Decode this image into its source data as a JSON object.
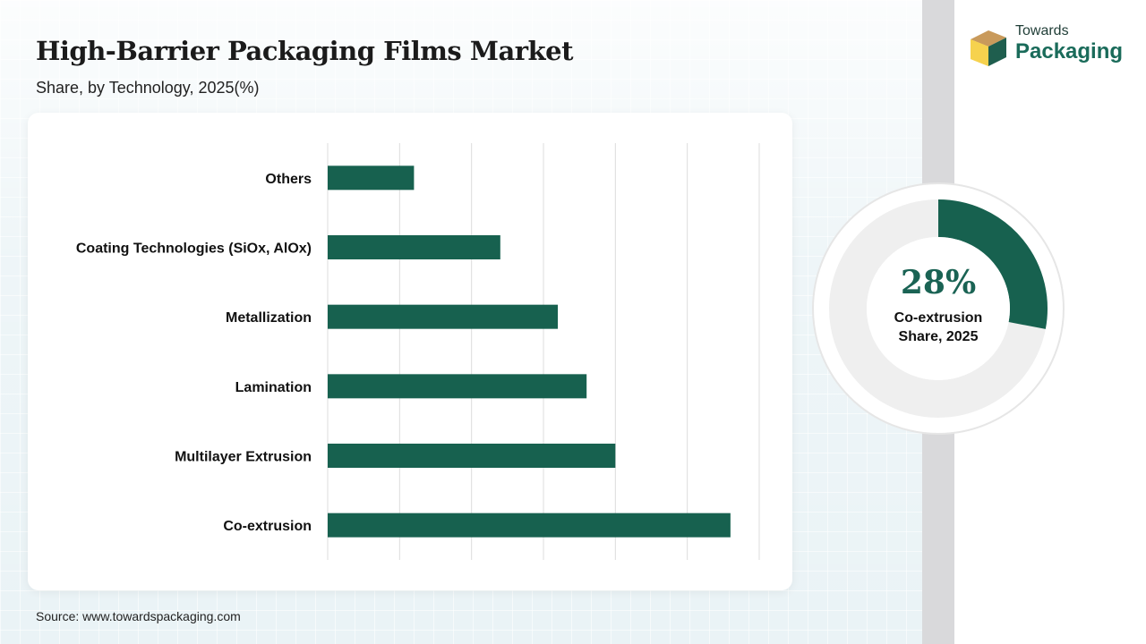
{
  "header": {
    "title": "High-Barrier Packaging Films Market",
    "subtitle": "Share, by Technology, 2025(%)"
  },
  "brand": {
    "line1": "Towards",
    "line2": "Packaging"
  },
  "footer": {
    "source": "Source: www.towardspackaging.com"
  },
  "colors": {
    "bar": "#17614f",
    "donut_fill": "#17614f",
    "donut_track": "#efefef",
    "grid": "#dcdcdc"
  },
  "chart_data": [
    {
      "type": "bar",
      "orientation": "horizontal",
      "categories": [
        "Others",
        "Coating Technologies (SiOx, AlOx)",
        "Metallization",
        "Lamination",
        "Multilayer Extrusion",
        "Co-extrusion"
      ],
      "values": [
        6,
        12,
        16,
        18,
        20,
        28
      ],
      "xlim": [
        0,
        30
      ],
      "grid": true,
      "title": "",
      "xlabel": "",
      "ylabel": ""
    },
    {
      "type": "pie",
      "variant": "donut",
      "value": 28,
      "display_value": "28%",
      "label_line1": "Co-extrusion",
      "label_line2": "Share, 2025"
    }
  ]
}
